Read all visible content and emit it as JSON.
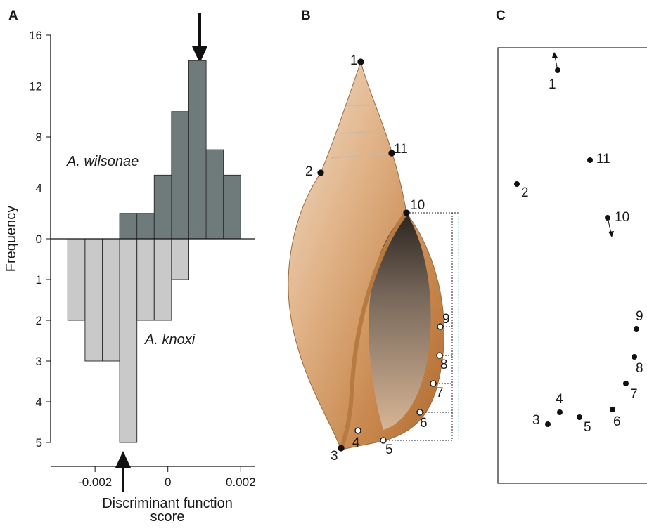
{
  "panels": [
    "A",
    "B",
    "C"
  ],
  "chart_data": {
    "type": "mirrored-histogram",
    "ylabel": "Frequency",
    "xlabel": "Discriminant function score",
    "bins": [
      -0.00275,
      -0.002275,
      -0.0018,
      -0.001325,
      -0.00085,
      -0.000375,
      0.0001,
      0.000575,
      0.00105,
      0.001525,
      0.002
    ],
    "series": [
      {
        "name": "A. wilsonae",
        "color": "#6f7b7a",
        "values": [
          0,
          0,
          0,
          2,
          2,
          5,
          10,
          14,
          7,
          5
        ]
      },
      {
        "name": "A. knoxi",
        "color": "#c9c9c9",
        "axis": "y2",
        "values": [
          2,
          3,
          3,
          5,
          2,
          2,
          1,
          0,
          0,
          0
        ]
      }
    ],
    "xlim": [
      -0.0032,
      0.0024
    ],
    "xticks": [
      -0.002,
      0,
      0.002
    ],
    "ylim": [
      0,
      16
    ],
    "yticks": [
      0,
      4,
      8,
      12,
      16
    ],
    "y2lim": [
      0,
      5
    ],
    "y2ticks": [
      1,
      2,
      3,
      4,
      5
    ]
  },
  "shell_landmarks": [
    "1",
    "11",
    "2",
    "10",
    "9",
    "8",
    "7",
    "6",
    "5",
    "4",
    "3"
  ],
  "deformation_landmarks": [
    "1",
    "11",
    "2",
    "10",
    "9",
    "8",
    "7",
    "6",
    "5",
    "4",
    "3"
  ]
}
